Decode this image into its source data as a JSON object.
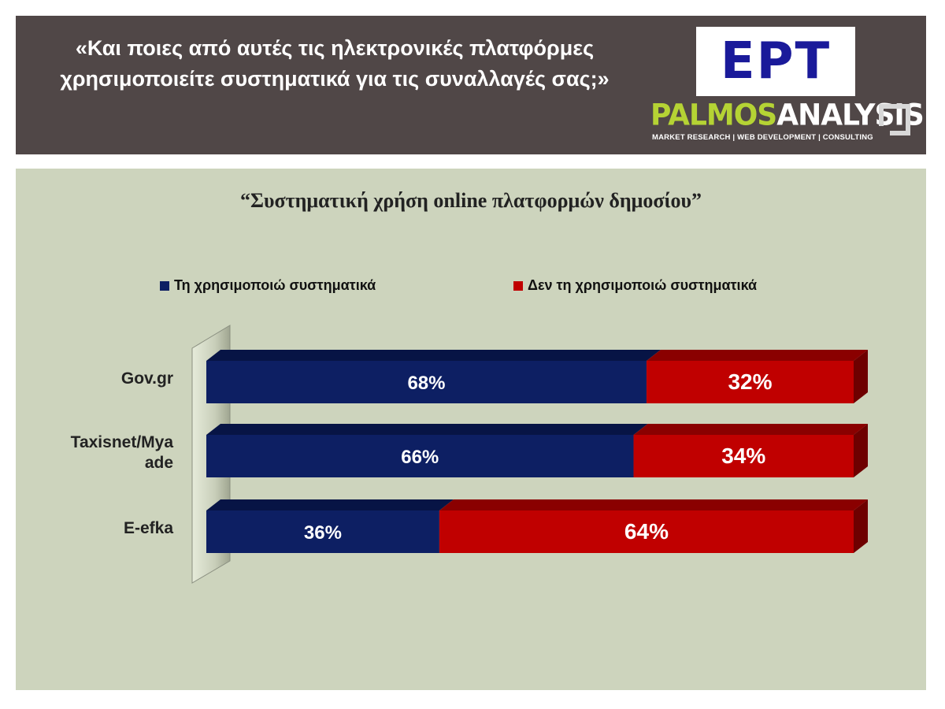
{
  "header": {
    "question": "«Και ποιες από αυτές τις ηλεκτρονικές πλατφόρμες χρησιμοποιείτε συστηματικά για τις συναλλαγές σας;»",
    "logo_ert": "ΕΡΤ",
    "logo_palmos_a": "PALMOS",
    "logo_palmos_b": "ANALYSIS",
    "logo_tagline": "MARKET RESEARCH | WEB DEVELOPMENT | CONSULTING"
  },
  "colors": {
    "header_bg": "#504747",
    "panel_bg": "#cdd4bd",
    "series_1": "#0d1f63",
    "series_2": "#c00000"
  },
  "chart_data": {
    "type": "bar",
    "orientation": "horizontal",
    "stacked": true,
    "title": "“Συστηματική χρήση online πλατφορμών δημοσίου”",
    "categories": [
      "Gov.gr",
      "Taxisnet/Myaade",
      "E-efka"
    ],
    "category_labels": [
      "Gov.gr",
      "Taxisnet/Mya\nade",
      "E-efka"
    ],
    "series": [
      {
        "name": "Τη χρησιμοποιώ συστηματικά",
        "values": [
          68,
          66,
          36
        ],
        "labels": [
          "68%",
          "66%",
          "36%"
        ]
      },
      {
        "name": "Δεν τη χρησιμοποιώ συστηματικά",
        "values": [
          32,
          34,
          64
        ],
        "labels": [
          "32%",
          "34%",
          "64%"
        ]
      }
    ],
    "xlim": [
      0,
      100
    ],
    "legend": "top",
    "grid": false
  }
}
